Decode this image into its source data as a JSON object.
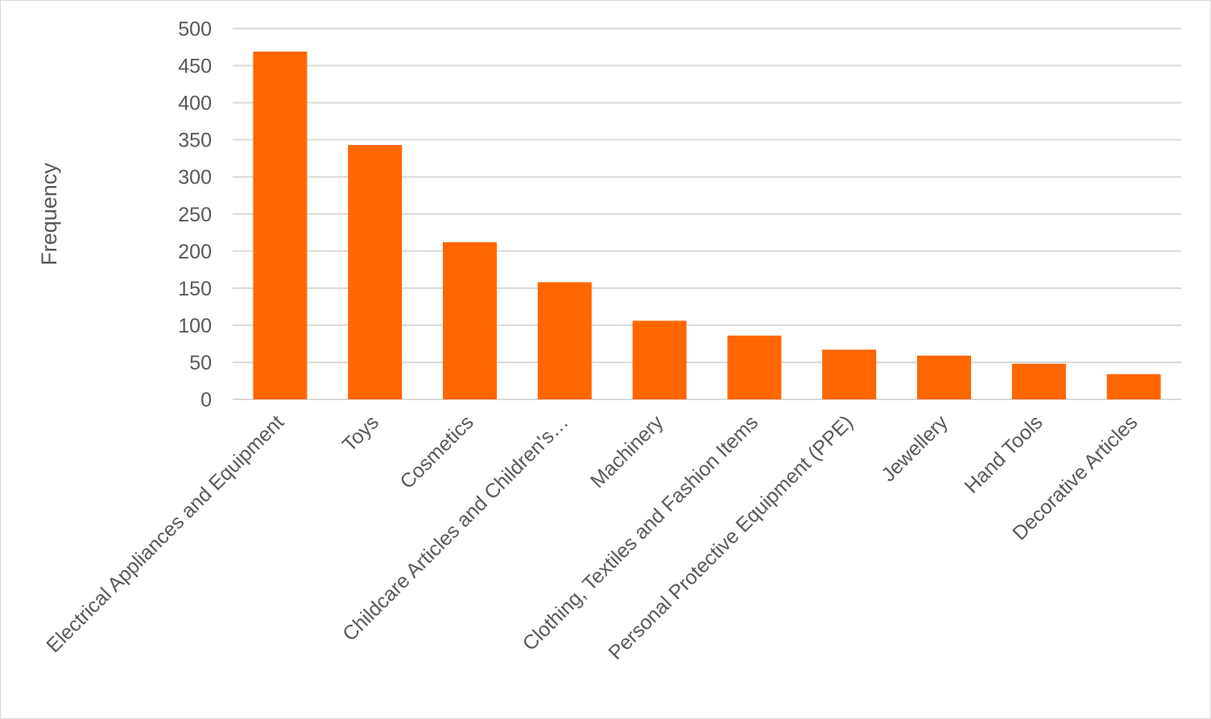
{
  "chart_data": {
    "type": "bar",
    "title": "",
    "xlabel": "",
    "ylabel": "Frequency",
    "ylim": [
      0,
      500
    ],
    "yticks": [
      0,
      50,
      100,
      150,
      200,
      250,
      300,
      350,
      400,
      450,
      500
    ],
    "grid": true,
    "legend": "none",
    "bar_color": "#FF6600",
    "categories": [
      "Electrical Appliances and Equipment",
      "Toys",
      "Cosmetics",
      "Childcare  Articles and Children's…",
      "Machinery",
      "Clothing, Textiles and Fashion Items",
      "Personal Protective Equipment (PPE)",
      "Jewellery",
      "Hand Tools",
      "Decorative Articles"
    ],
    "values": [
      469,
      343,
      212,
      158,
      106,
      86,
      67,
      59,
      48,
      34
    ]
  }
}
